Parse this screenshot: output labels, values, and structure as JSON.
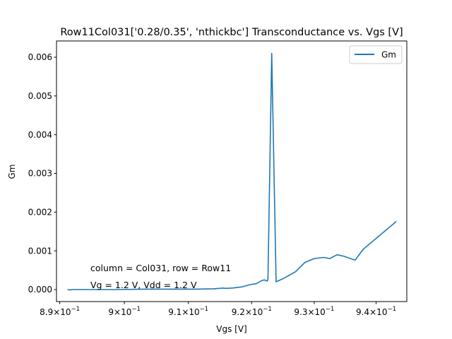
{
  "chart_data": {
    "type": "line",
    "title": "Row11Col031['0.28/0.35', 'nthickbc'] Transconductance vs. Vgs [V]",
    "xlabel": "Vgs [V]",
    "ylabel": "Gm",
    "x_scale": "log",
    "xlim": [
      0.8895,
      0.945
    ],
    "ylim": [
      -0.00031,
      0.00642
    ],
    "x_ticks": [
      {
        "value": 0.89,
        "mant": "8.9",
        "exp": "−1"
      },
      {
        "value": 0.9,
        "mant": "9",
        "exp": "−1"
      },
      {
        "value": 0.91,
        "mant": "9.1",
        "exp": "−1"
      },
      {
        "value": 0.92,
        "mant": "9.2",
        "exp": "−1"
      },
      {
        "value": 0.93,
        "mant": "9.3",
        "exp": "−1"
      },
      {
        "value": 0.94,
        "mant": "9.4",
        "exp": "−1"
      }
    ],
    "y_ticks": [
      {
        "value": 0.0,
        "label": "0.000"
      },
      {
        "value": 0.001,
        "label": "0.001"
      },
      {
        "value": 0.002,
        "label": "0.002"
      },
      {
        "value": 0.003,
        "label": "0.003"
      },
      {
        "value": 0.004,
        "label": "0.004"
      },
      {
        "value": 0.005,
        "label": "0.005"
      },
      {
        "value": 0.006,
        "label": "0.006"
      }
    ],
    "series": [
      {
        "name": "Gm",
        "color": "#1f77b4",
        "points": [
          [
            0.8912,
            0.0
          ],
          [
            0.8916,
            -1e-05
          ],
          [
            0.892,
            0.0
          ],
          [
            0.8925,
            0.0
          ],
          [
            0.895,
            0.0
          ],
          [
            0.899,
            0.0
          ],
          [
            0.903,
            1e-05
          ],
          [
            0.907,
            1e-05
          ],
          [
            0.911,
            1e-05
          ],
          [
            0.914,
            2e-05
          ],
          [
            0.9156,
            4e-05
          ],
          [
            0.9158,
            3e-05
          ],
          [
            0.917,
            4e-05
          ],
          [
            0.9185,
            7e-05
          ],
          [
            0.9198,
            0.00013
          ],
          [
            0.9207,
            0.00015
          ],
          [
            0.9216,
            0.00023
          ],
          [
            0.922,
            0.00025
          ],
          [
            0.9225,
            0.00022
          ],
          [
            0.9226,
            0.00028
          ],
          [
            0.9232,
            0.0061
          ],
          [
            0.9239,
            0.0002
          ],
          [
            0.925,
            0.00028
          ],
          [
            0.927,
            0.00046
          ],
          [
            0.9285,
            0.0007
          ],
          [
            0.93,
            0.0008
          ],
          [
            0.9315,
            0.00083
          ],
          [
            0.9325,
            0.0008
          ],
          [
            0.9337,
            0.0009
          ],
          [
            0.9348,
            0.00086
          ],
          [
            0.9366,
            0.00076
          ],
          [
            0.9379,
            0.00104
          ],
          [
            0.9433,
            0.00176
          ]
        ]
      }
    ],
    "legend": {
      "placement": "top-right",
      "entries": [
        "Gm"
      ]
    },
    "grid": false,
    "annotations": [
      "column = Col031, row = Row11",
      "Vg = 1.2 V, Vdd = 1.2 V"
    ]
  }
}
